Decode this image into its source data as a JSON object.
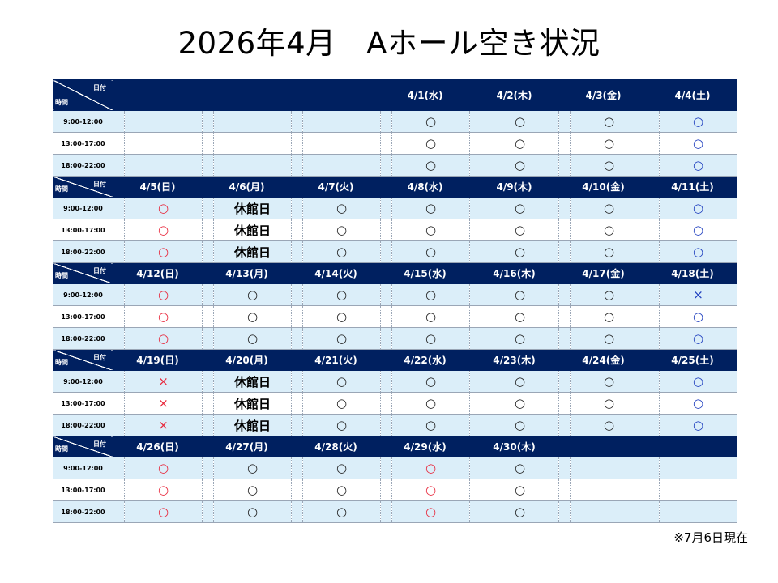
{
  "title": "2026年4月　Aホール空き状況",
  "note": "※7月6日現在",
  "corner": {
    "date_label": "日付",
    "time_label": "時間"
  },
  "time_slots": [
    "9:00-12:00",
    "13:00-17:00",
    "18:00-22:00"
  ],
  "symbols": {
    "available": "○",
    "full": "×",
    "closed": "休館日"
  },
  "colors": {
    "header_bg": "#002060",
    "row_shade": "#dbeef9",
    "sunday_holiday": "#e8283c",
    "saturday": "#1f3fbf"
  },
  "weeks": [
    {
      "days": [
        {
          "label": "",
          "slots": [
            "",
            "",
            ""
          ],
          "color": "black"
        },
        {
          "label": "",
          "slots": [
            "",
            "",
            ""
          ],
          "color": "black"
        },
        {
          "label": "",
          "slots": [
            "",
            "",
            ""
          ],
          "color": "black"
        },
        {
          "label": "4/1(水)",
          "slots": [
            "○",
            "○",
            "○"
          ],
          "color": "black"
        },
        {
          "label": "4/2(木)",
          "slots": [
            "○",
            "○",
            "○"
          ],
          "color": "black"
        },
        {
          "label": "4/3(金)",
          "slots": [
            "○",
            "○",
            "○"
          ],
          "color": "black"
        },
        {
          "label": "4/4(土)",
          "slots": [
            "○",
            "○",
            "○"
          ],
          "color": "blue"
        }
      ]
    },
    {
      "days": [
        {
          "label": "4/5(日)",
          "slots": [
            "○",
            "○",
            "○"
          ],
          "color": "red"
        },
        {
          "label": "4/6(月)",
          "slots": [
            "休館日",
            "休館日",
            "休館日"
          ],
          "color": "black"
        },
        {
          "label": "4/7(火)",
          "slots": [
            "○",
            "○",
            "○"
          ],
          "color": "black"
        },
        {
          "label": "4/8(水)",
          "slots": [
            "○",
            "○",
            "○"
          ],
          "color": "black"
        },
        {
          "label": "4/9(木)",
          "slots": [
            "○",
            "○",
            "○"
          ],
          "color": "black"
        },
        {
          "label": "4/10(金)",
          "slots": [
            "○",
            "○",
            "○"
          ],
          "color": "black"
        },
        {
          "label": "4/11(土)",
          "slots": [
            "○",
            "○",
            "○"
          ],
          "color": "blue"
        }
      ]
    },
    {
      "days": [
        {
          "label": "4/12(日)",
          "slots": [
            "○",
            "○",
            "○"
          ],
          "color": "red"
        },
        {
          "label": "4/13(月)",
          "slots": [
            "○",
            "○",
            "○"
          ],
          "color": "black"
        },
        {
          "label": "4/14(火)",
          "slots": [
            "○",
            "○",
            "○"
          ],
          "color": "black"
        },
        {
          "label": "4/15(水)",
          "slots": [
            "○",
            "○",
            "○"
          ],
          "color": "black"
        },
        {
          "label": "4/16(木)",
          "slots": [
            "○",
            "○",
            "○"
          ],
          "color": "black"
        },
        {
          "label": "4/17(金)",
          "slots": [
            "○",
            "○",
            "○"
          ],
          "color": "black"
        },
        {
          "label": "4/18(土)",
          "slots": [
            "×",
            "○",
            "○"
          ],
          "color": "blue"
        }
      ]
    },
    {
      "days": [
        {
          "label": "4/19(日)",
          "slots": [
            "×",
            "×",
            "×"
          ],
          "color": "red"
        },
        {
          "label": "4/20(月)",
          "slots": [
            "休館日",
            "休館日",
            "休館日"
          ],
          "color": "black"
        },
        {
          "label": "4/21(火)",
          "slots": [
            "○",
            "○",
            "○"
          ],
          "color": "black"
        },
        {
          "label": "4/22(水)",
          "slots": [
            "○",
            "○",
            "○"
          ],
          "color": "black"
        },
        {
          "label": "4/23(木)",
          "slots": [
            "○",
            "○",
            "○"
          ],
          "color": "black"
        },
        {
          "label": "4/24(金)",
          "slots": [
            "○",
            "○",
            "○"
          ],
          "color": "black"
        },
        {
          "label": "4/25(土)",
          "slots": [
            "○",
            "○",
            "○"
          ],
          "color": "blue"
        }
      ]
    },
    {
      "days": [
        {
          "label": "4/26(日)",
          "slots": [
            "○",
            "○",
            "○"
          ],
          "color": "red"
        },
        {
          "label": "4/27(月)",
          "slots": [
            "○",
            "○",
            "○"
          ],
          "color": "black"
        },
        {
          "label": "4/28(火)",
          "slots": [
            "○",
            "○",
            "○"
          ],
          "color": "black"
        },
        {
          "label": "4/29(水)",
          "slots": [
            "○",
            "○",
            "○"
          ],
          "color": "red"
        },
        {
          "label": "4/30(木)",
          "slots": [
            "○",
            "○",
            "○"
          ],
          "color": "black"
        },
        {
          "label": "",
          "slots": [
            "",
            "",
            ""
          ],
          "color": "black"
        },
        {
          "label": "",
          "slots": [
            "",
            "",
            ""
          ],
          "color": "black"
        }
      ]
    }
  ]
}
